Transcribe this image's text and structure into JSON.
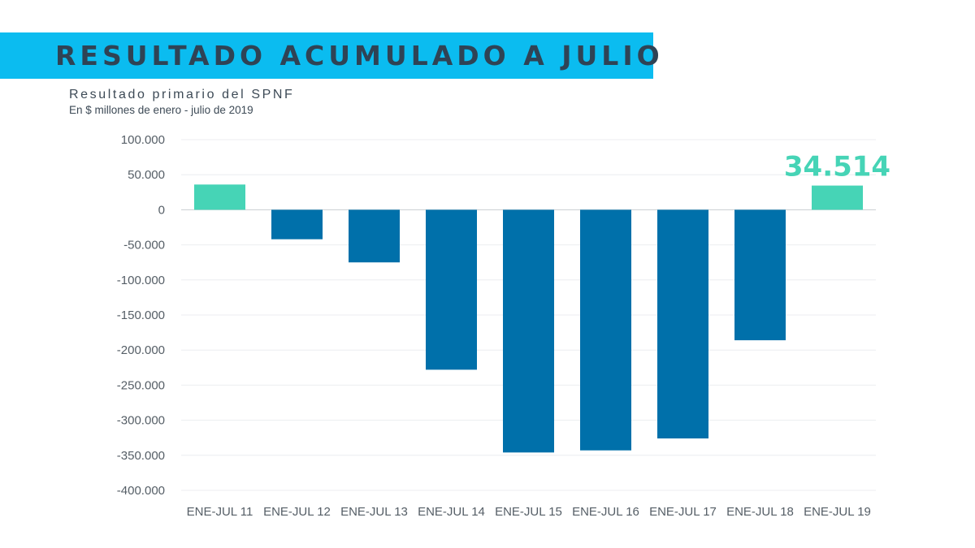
{
  "header": {
    "title": "RESULTADO ACUMULADO A JULIO"
  },
  "colors": {
    "banner": "#0bbcf0",
    "positive_bar": "#46d4b6",
    "negative_bar": "#0070aa",
    "callout": "#46d4b6"
  },
  "chart_data": {
    "type": "bar",
    "title": "Resultado primario del SPNF",
    "subtitle": "En $ millones de enero - julio de 2019",
    "xlabel": "",
    "ylabel": "",
    "categories": [
      "ENE-JUL 11",
      "ENE-JUL 12",
      "ENE-JUL 13",
      "ENE-JUL 14",
      "ENE-JUL 15",
      "ENE-JUL 16",
      "ENE-JUL 17",
      "ENE-JUL 18",
      "ENE-JUL 19"
    ],
    "values": [
      36000,
      -42000,
      -75000,
      -228000,
      -346000,
      -343000,
      -326000,
      -186000,
      34514
    ],
    "ylim": [
      -400000,
      100000
    ],
    "yticks": [
      100000,
      50000,
      0,
      -50000,
      -100000,
      -150000,
      -200000,
      -250000,
      -300000,
      -350000,
      -400000
    ],
    "ytick_labels": [
      "100.000",
      "50.000",
      "0",
      "-50.000",
      "-100.000",
      "-150.000",
      "-200.000",
      "-250.000",
      "-300.000",
      "-350.000",
      "-400.000"
    ],
    "grid": true,
    "annotation": {
      "category": "ENE-JUL 19",
      "text": "34.514"
    }
  }
}
